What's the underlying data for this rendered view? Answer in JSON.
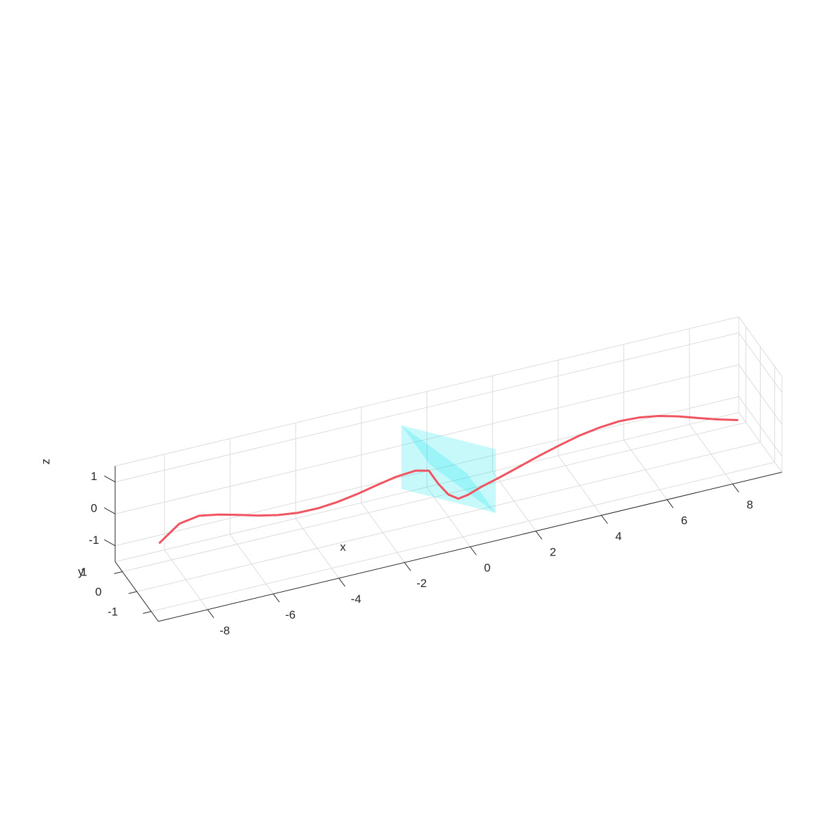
{
  "chart_data": {
    "type": "line3d",
    "title": "",
    "xlabel": "x",
    "ylabel": "y",
    "zlabel": "z",
    "xlim": [
      -9.5,
      9.5
    ],
    "ylim": [
      -1.5,
      1.5
    ],
    "zlim": [
      -1.5,
      1.5
    ],
    "xticks": [
      "-8",
      "-6",
      "-4",
      "-2",
      "0",
      "2",
      "4",
      "6",
      "8"
    ],
    "yticks": [
      "-1",
      "0",
      "1"
    ],
    "zticks": [
      "-1",
      "0",
      "1"
    ],
    "grid": true,
    "series": [
      {
        "kind": "curve",
        "color": "#f0525f",
        "x_range": [
          -8.8,
          8.8
        ],
        "points": [
          [
            -8.8,
            0,
            -0.14
          ],
          [
            -8.2,
            0,
            0.31
          ],
          [
            -7.6,
            0,
            0.41
          ],
          [
            -7.0,
            0,
            0.3
          ],
          [
            -6.4,
            0,
            0.14
          ],
          [
            -5.8,
            0,
            -0.03
          ],
          [
            -5.2,
            0,
            -0.16
          ],
          [
            -4.6,
            0,
            -0.24
          ],
          [
            -4.0,
            0,
            -0.25
          ],
          [
            -3.4,
            0,
            -0.2
          ],
          [
            -2.8,
            0,
            -0.1
          ],
          [
            -2.2,
            0,
            0.03
          ],
          [
            -1.6,
            0,
            0.15
          ],
          [
            -1.0,
            0,
            0.2
          ],
          [
            -0.6,
            0,
            0.1
          ],
          [
            -0.3,
            0,
            -0.4
          ],
          [
            0.0,
            0,
            -0.8
          ],
          [
            0.3,
            0,
            -1.0
          ],
          [
            0.6,
            0,
            -0.95
          ],
          [
            1.0,
            0,
            -0.8
          ],
          [
            1.6,
            0,
            -0.63
          ],
          [
            2.2,
            0,
            -0.44
          ],
          [
            2.8,
            0,
            -0.25
          ],
          [
            3.4,
            0,
            -0.08
          ],
          [
            4.0,
            0,
            0.07
          ],
          [
            4.6,
            0,
            0.17
          ],
          [
            5.2,
            0,
            0.22
          ],
          [
            5.8,
            0,
            0.19
          ],
          [
            6.4,
            0,
            0.09
          ],
          [
            7.0,
            0,
            -0.07
          ],
          [
            7.6,
            0,
            -0.27
          ],
          [
            8.2,
            0,
            -0.46
          ],
          [
            8.8,
            0,
            -0.63
          ]
        ]
      },
      {
        "kind": "plane",
        "color": "#00e5ee",
        "opacity": 0.22,
        "corners": [
          [
            -1.0,
            -1.0,
            1.0
          ],
          [
            1.0,
            -1.0,
            -1.0
          ],
          [
            1.0,
            1.0,
            -1.0
          ],
          [
            -1.0,
            1.0,
            1.0
          ]
        ]
      },
      {
        "kind": "plane",
        "color": "#00e5ee",
        "opacity": 0.22,
        "corners": [
          [
            -1.0,
            1.0,
            -1.0
          ],
          [
            1.0,
            -1.0,
            -1.0
          ],
          [
            1.0,
            -1.0,
            1.0
          ],
          [
            -1.0,
            1.0,
            1.0
          ]
        ]
      }
    ]
  }
}
